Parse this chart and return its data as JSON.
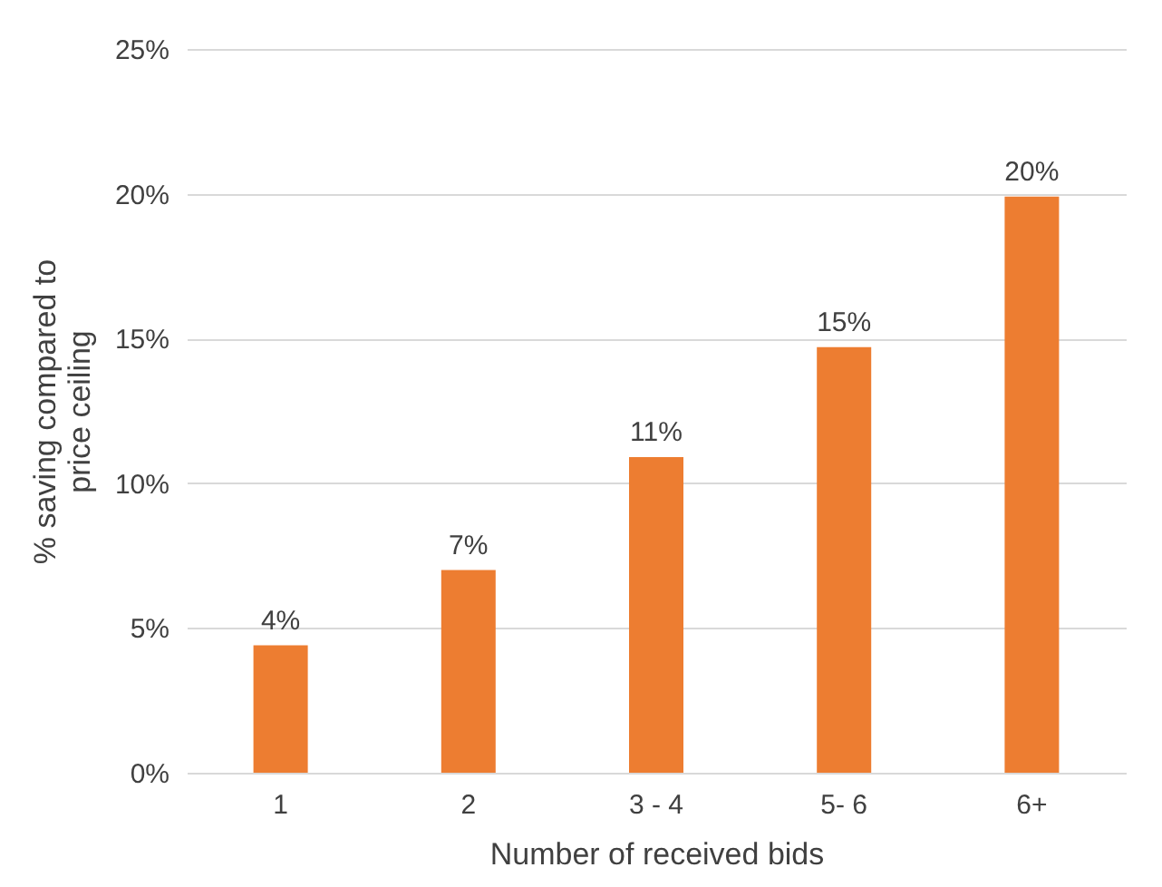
{
  "chart_data": {
    "type": "bar",
    "xlabel": "Number of received bids",
    "ylabel": "% saving compared to price ceiling",
    "categories": [
      "1",
      "2",
      "3 - 4",
      "5- 6",
      "6+"
    ],
    "values": [
      4.4,
      7.0,
      10.9,
      14.7,
      19.9
    ],
    "value_labels": [
      "4%",
      "7%",
      "11%",
      "15%",
      "20%"
    ],
    "color": "#ed7d31",
    "ylim": [
      0,
      25
    ],
    "yticks": [
      {
        "value": 0,
        "label": "0%"
      },
      {
        "value": 5,
        "label": "5%"
      },
      {
        "value": 10,
        "label": "10%"
      },
      {
        "value": 15,
        "label": "15%"
      },
      {
        "value": 20,
        "label": "20%"
      },
      {
        "value": 25,
        "label": "25%"
      }
    ],
    "grid": "y"
  }
}
